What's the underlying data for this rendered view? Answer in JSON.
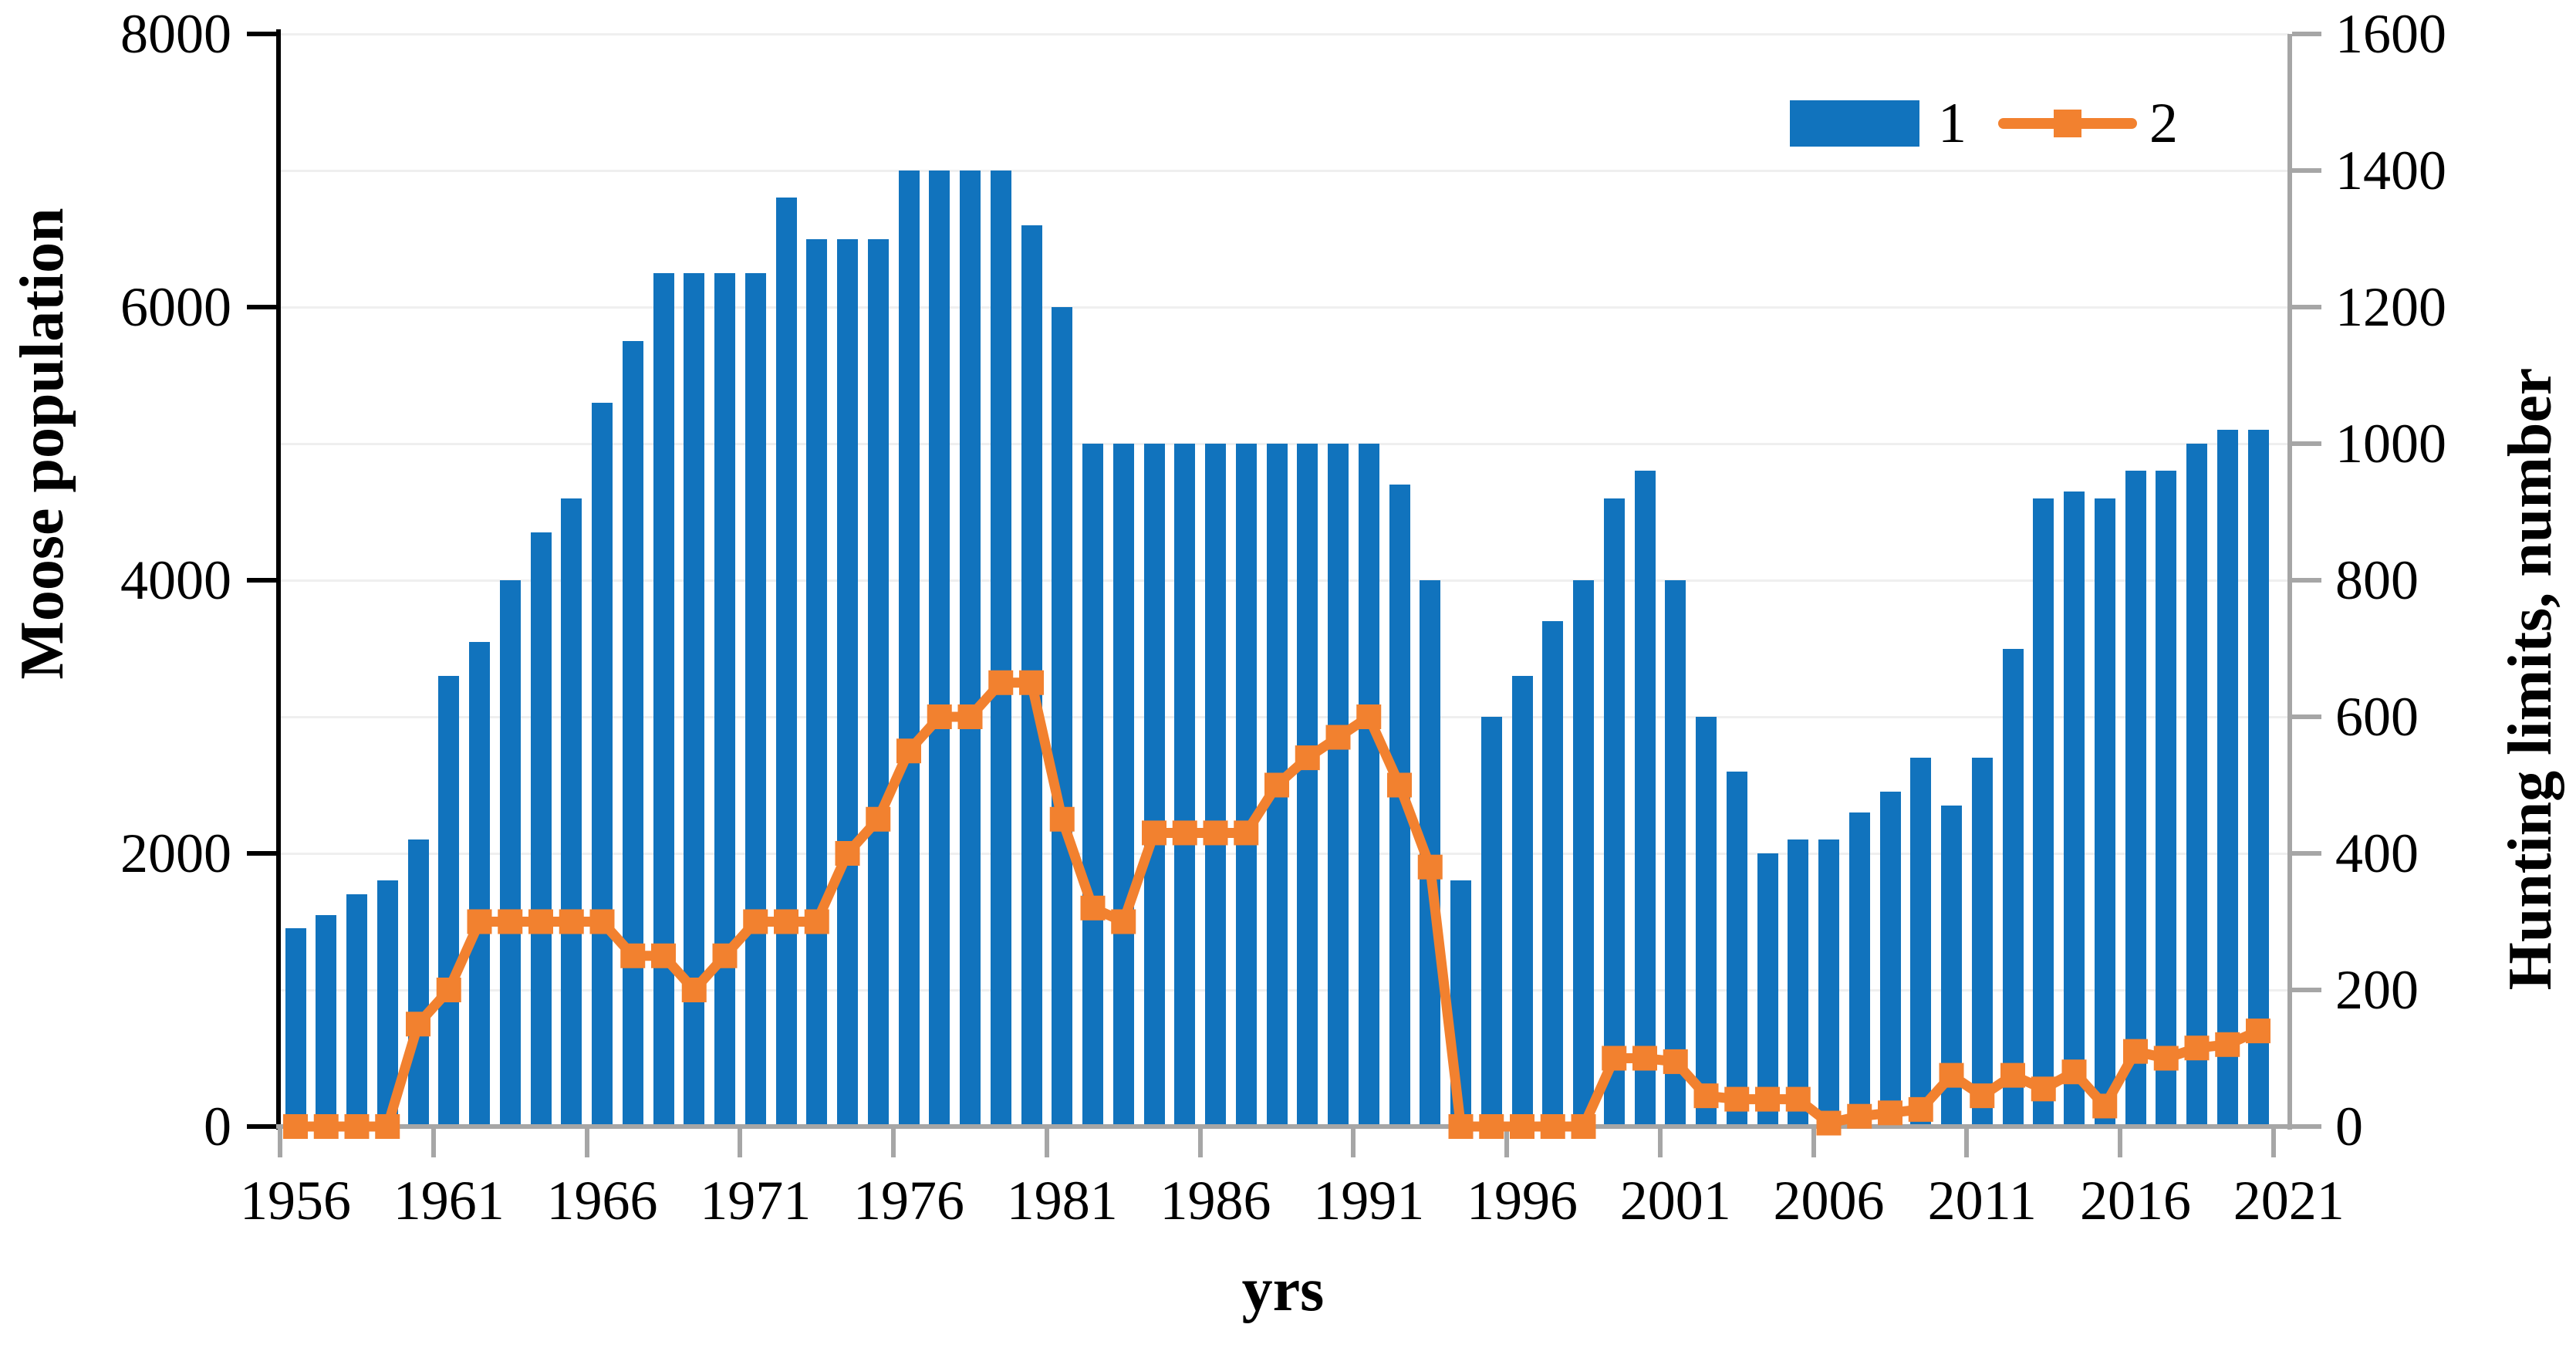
{
  "chart_data": {
    "type": "bar",
    "subtype": "combo-bar-line-dual-axis",
    "title": "",
    "categories": [
      1956,
      1957,
      1958,
      1959,
      1960,
      1961,
      1962,
      1963,
      1964,
      1965,
      1966,
      1967,
      1968,
      1969,
      1970,
      1971,
      1972,
      1973,
      1974,
      1975,
      1976,
      1977,
      1978,
      1979,
      1980,
      1981,
      1982,
      1983,
      1984,
      1985,
      1986,
      1987,
      1988,
      1989,
      1990,
      1991,
      1992,
      1993,
      1994,
      1995,
      1996,
      1997,
      1998,
      1999,
      2000,
      2001,
      2002,
      2003,
      2004,
      2005,
      2006,
      2007,
      2008,
      2009,
      2010,
      2011,
      2012,
      2013,
      2014,
      2015,
      2016,
      2017,
      2018,
      2019,
      2020
    ],
    "series": [
      {
        "name": "1",
        "type": "bar",
        "axis": "left",
        "color": "#1173bd",
        "values": [
          1450,
          1550,
          1700,
          1800,
          2100,
          3300,
          3550,
          4000,
          4350,
          4600,
          5300,
          5750,
          6250,
          6250,
          6250,
          6250,
          6800,
          6500,
          6500,
          6500,
          7000,
          7000,
          7000,
          7000,
          6600,
          6000,
          5000,
          5000,
          5000,
          5000,
          5000,
          5000,
          5000,
          5000,
          5000,
          5000,
          4700,
          4000,
          1800,
          3000,
          3300,
          3700,
          4000,
          4600,
          4800,
          4000,
          3000,
          2600,
          2000,
          2100,
          2100,
          2300,
          2450,
          2700,
          2350,
          2700,
          3500,
          4600,
          4650,
          4600,
          4800,
          4800,
          5000,
          5100,
          5100
        ]
      },
      {
        "name": "2",
        "type": "line",
        "axis": "right",
        "color": "#f2812f",
        "marker": "square",
        "values": [
          0,
          0,
          0,
          0,
          150,
          200,
          300,
          300,
          300,
          300,
          300,
          250,
          250,
          200,
          250,
          300,
          300,
          300,
          400,
          450,
          550,
          600,
          600,
          650,
          650,
          450,
          320,
          300,
          430,
          430,
          430,
          430,
          500,
          540,
          570,
          600,
          500,
          380,
          0,
          0,
          0,
          0,
          0,
          100,
          100,
          95,
          45,
          40,
          40,
          40,
          5,
          15,
          20,
          25,
          75,
          45,
          75,
          55,
          80,
          30,
          110,
          100,
          115,
          120,
          140
        ]
      }
    ],
    "left_axis": {
      "title": "Moose  population",
      "range": [
        0,
        8000
      ],
      "tick_step": 2000,
      "ticks": [
        "0",
        "2000",
        "4000",
        "6000",
        "8000"
      ]
    },
    "right_axis": {
      "title": "Hunting limits, number",
      "range": [
        0,
        1600
      ],
      "tick_step": 200,
      "ticks": [
        "0",
        "200",
        "400",
        "600",
        "800",
        "1000",
        "1200",
        "1400",
        "1600"
      ]
    },
    "x_axis": {
      "title": "yrs",
      "tick_labels": [
        "1956",
        "1961",
        "1966",
        "1971",
        "1976",
        "1981",
        "1986",
        "1991",
        "1996",
        "2001",
        "2006",
        "2011",
        "2016",
        "2021"
      ]
    },
    "legend": {
      "items": [
        {
          "label": "1"
        },
        {
          "label": "2"
        }
      ],
      "position": "top-right-inside"
    },
    "grid": {
      "horizontal_every": 1000,
      "color": "#efefef"
    }
  }
}
